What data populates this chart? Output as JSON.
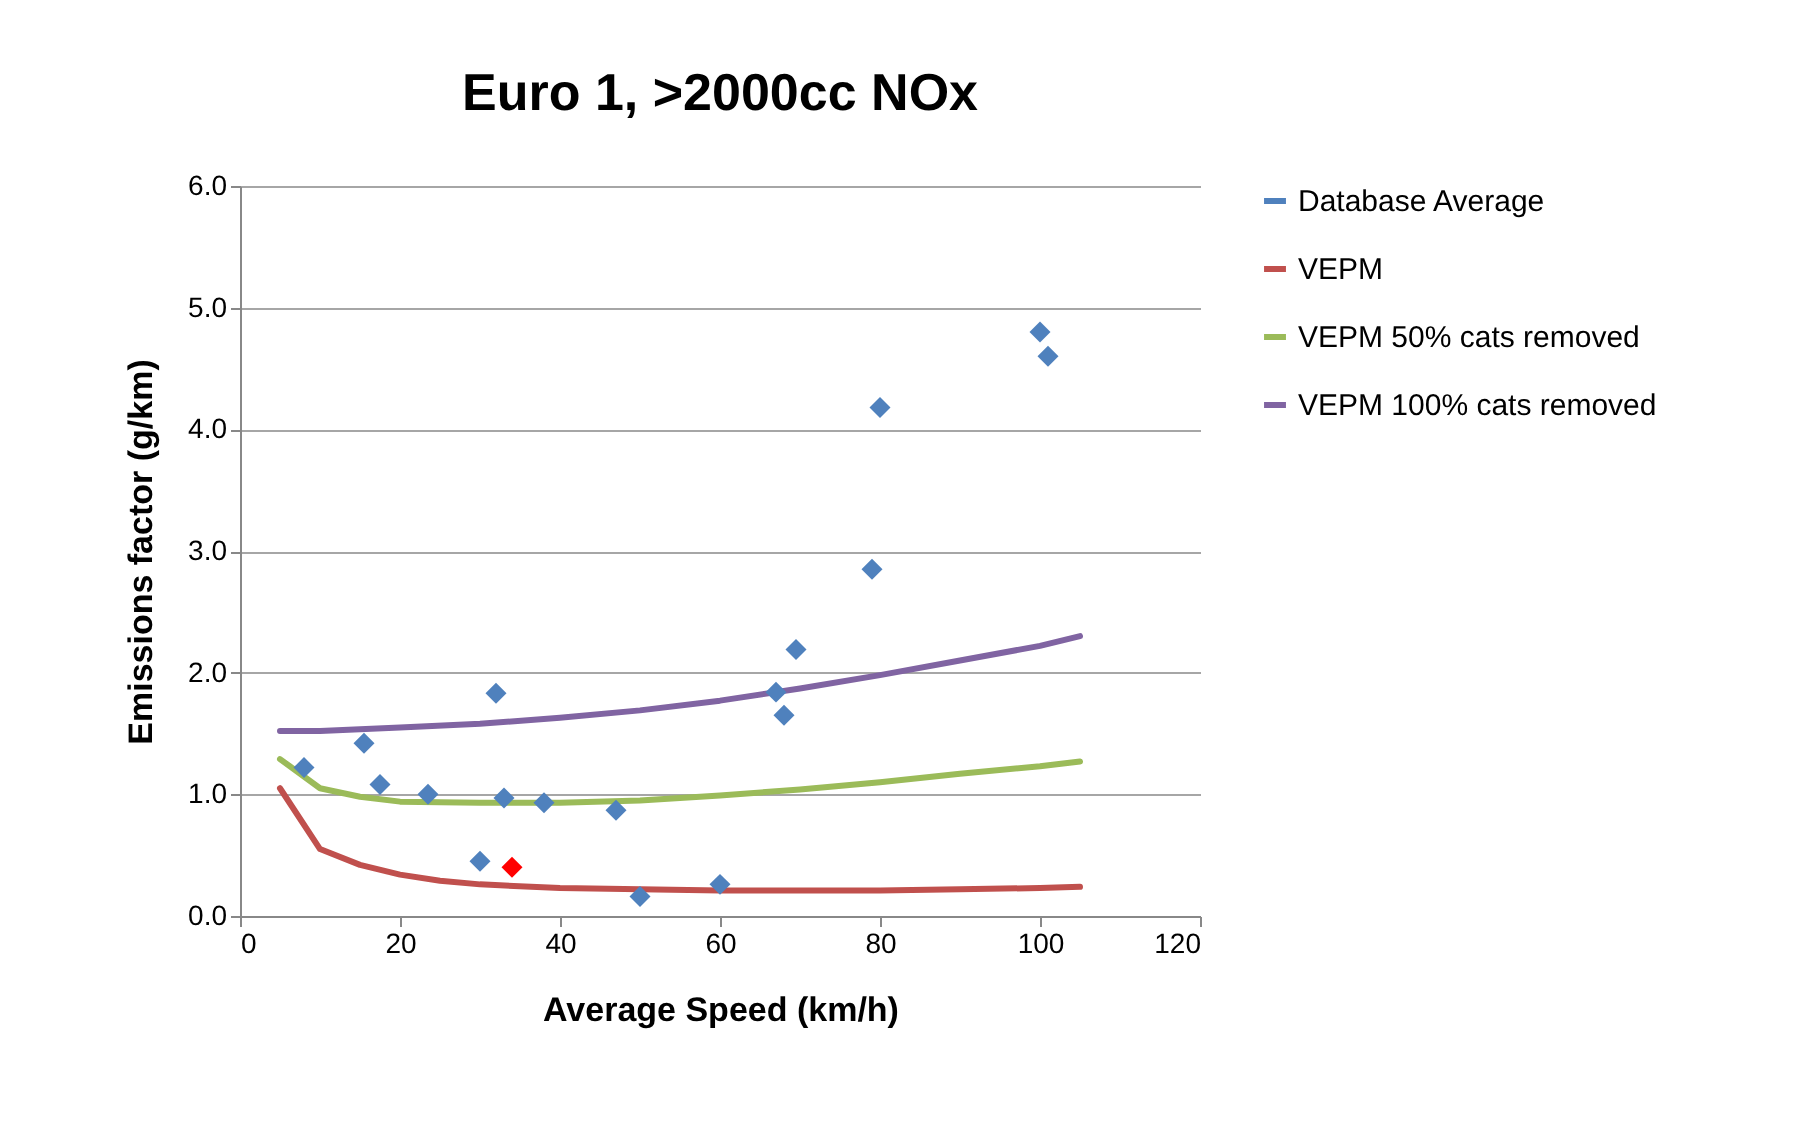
{
  "chart_data": {
    "type": "scatter",
    "title": "Euro 1, >2000cc NOx",
    "xlabel": "Average Speed (km/h)",
    "ylabel": "Emissions factor (g/km)",
    "xlim": [
      0,
      120
    ],
    "xticks": [
      0,
      20,
      40,
      60,
      80,
      100,
      120
    ],
    "ylim": [
      0,
      6
    ],
    "yticks": [
      {
        "value": 0,
        "label": "0.0"
      },
      {
        "value": 1,
        "label": "1.0"
      },
      {
        "value": 2,
        "label": "2.0"
      },
      {
        "value": 3,
        "label": "3.0"
      },
      {
        "value": 4,
        "label": "4.0"
      },
      {
        "value": 5,
        "label": "5.0"
      },
      {
        "value": 6,
        "label": "6.0"
      }
    ],
    "grid": "y",
    "legend": "right",
    "series": [
      {
        "name": "Database Average",
        "marker": "diamond",
        "color": "#4f81bd",
        "x": [
          8,
          15.5,
          17.5,
          23.5,
          30,
          32,
          33,
          38,
          47,
          50,
          60,
          67,
          68,
          69.5,
          79,
          80,
          100,
          101
        ],
        "values": [
          1.22,
          1.42,
          1.08,
          1.0,
          0.45,
          1.83,
          0.97,
          0.93,
          0.87,
          0.16,
          0.26,
          1.84,
          1.65,
          2.19,
          2.85,
          4.18,
          4.8,
          4.6
        ]
      },
      {
        "marker": "diamond",
        "color": "#ff0000",
        "x": [
          34
        ],
        "values": [
          0.4
        ]
      },
      {
        "name": "VEPM",
        "type": "line",
        "color": "#c0504d",
        "x": [
          5,
          10,
          15,
          20,
          25,
          30,
          40,
          50,
          60,
          70,
          80,
          90,
          100,
          105
        ],
        "values": [
          1.05,
          0.55,
          0.42,
          0.34,
          0.29,
          0.26,
          0.23,
          0.22,
          0.21,
          0.21,
          0.21,
          0.22,
          0.23,
          0.24
        ]
      },
      {
        "name": "VEPM 50% cats removed",
        "type": "line",
        "color": "#9bbb59",
        "x": [
          5,
          10,
          15,
          20,
          30,
          40,
          50,
          60,
          70,
          80,
          90,
          100,
          105
        ],
        "values": [
          1.29,
          1.05,
          0.98,
          0.94,
          0.93,
          0.93,
          0.95,
          0.99,
          1.04,
          1.1,
          1.17,
          1.23,
          1.27
        ]
      },
      {
        "name": "VEPM 100% cats removed",
        "type": "line",
        "color": "#8064a2",
        "x": [
          5,
          10,
          20,
          30,
          40,
          50,
          60,
          70,
          80,
          90,
          100,
          105
        ],
        "values": [
          1.52,
          1.52,
          1.55,
          1.58,
          1.63,
          1.69,
          1.77,
          1.87,
          1.98,
          2.1,
          2.22,
          2.3
        ]
      }
    ]
  }
}
